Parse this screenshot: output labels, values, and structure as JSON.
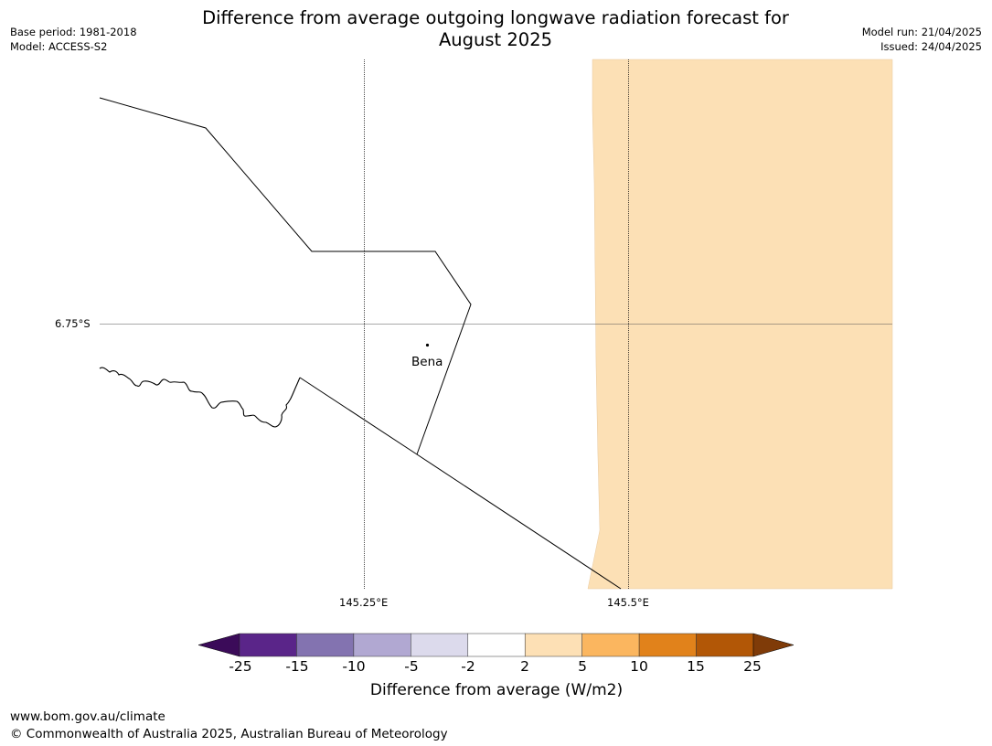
{
  "header": {
    "base_period": "Base period: 1981-2018",
    "model": "Model: ACCESS-S2",
    "title_line1": "Difference from average outgoing longwave radiation forecast for",
    "title_line2": "August 2025",
    "model_run": "Model run: 21/04/2025",
    "issued": "Issued: 24/04/2025"
  },
  "map": {
    "latitude_label": "6.75°S",
    "longitude_labels": [
      "145.25°E",
      "145.5°E"
    ],
    "town": "Bena",
    "anomaly_fill_color": "#fce0b5",
    "anomaly_category": "2 to 5"
  },
  "colorbar": {
    "ticks": [
      "-25",
      "-15",
      "-10",
      "-5",
      "-2",
      "2",
      "5",
      "10",
      "15",
      "25"
    ],
    "colors": [
      "#3b0b59",
      "#5a2589",
      "#8373b0",
      "#b1a8d2",
      "#dcdaec",
      "#ffffff",
      "#fde0b5",
      "#fbb65f",
      "#e1821b",
      "#b25706",
      "#7f3b08"
    ],
    "label": "Difference from average (W/m2)"
  },
  "footer": {
    "url": "www.bom.gov.au/climate",
    "copyright": "© Commonwealth of Australia 2025, Australian Bureau of Meteorology"
  }
}
